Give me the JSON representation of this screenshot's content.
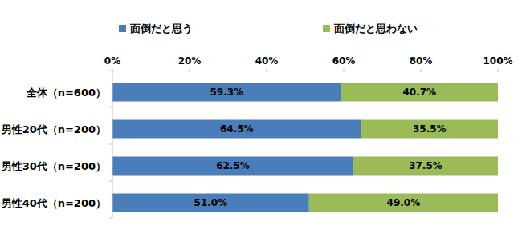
{
  "chart_data": {
    "type": "bar",
    "orientation": "horizontal",
    "stacked": true,
    "data_labels": true,
    "grid": false,
    "legend": "top",
    "categories": [
      "全体（n=600）",
      "男性20代（n=200）",
      "男性30代（n=200）",
      "男性40代（n=200）"
    ],
    "series": [
      {
        "name": "面倒だと思う",
        "color": "#4a7ebb",
        "values": [
          59.3,
          64.5,
          62.5,
          51.0
        ],
        "value_labels": [
          "59.3%",
          "64.5%",
          "62.5%",
          "51.0%"
        ]
      },
      {
        "name": "面倒だと思わない",
        "color": "#9bbb59",
        "values": [
          40.7,
          35.5,
          37.5,
          49.0
        ],
        "value_labels": [
          "40.7%",
          "35.5%",
          "37.5%",
          "49.0%"
        ]
      }
    ],
    "xlim": [
      0,
      100
    ],
    "xticks": [
      {
        "value": 0,
        "label": "0%"
      },
      {
        "value": 20,
        "label": "20%"
      },
      {
        "value": 40,
        "label": "40%"
      },
      {
        "value": 60,
        "label": "60%"
      },
      {
        "value": 80,
        "label": "80%"
      },
      {
        "value": 100,
        "label": "100%"
      }
    ]
  }
}
